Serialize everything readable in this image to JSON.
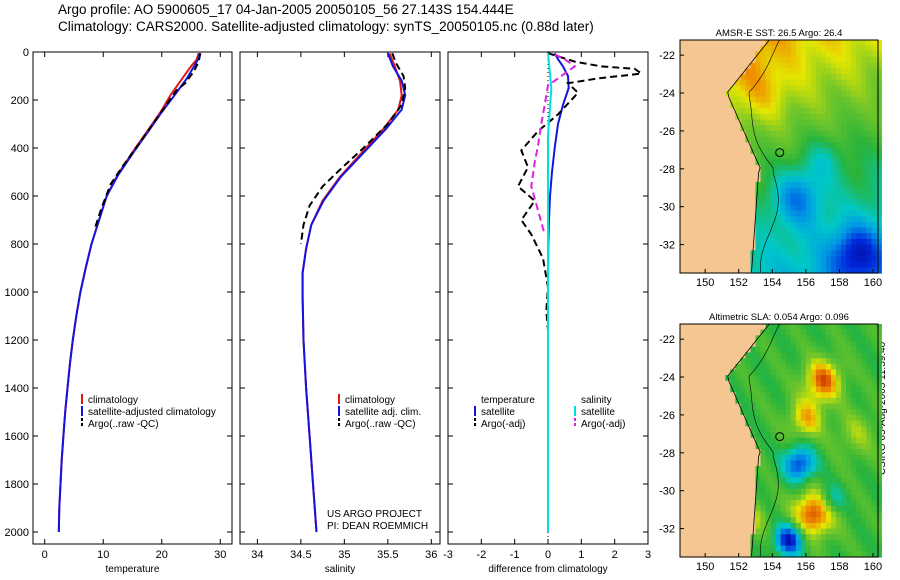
{
  "header": {
    "title_line1": "Argo profile: AO 5900605_17 04-Jan-2005 20050105_56 27.143S 154.444E",
    "title_line2": "Climatology: CARS2000. Satellite-adjusted climatology: synTS_20050105.nc (0.88d later)"
  },
  "side_label": "CSIRO 05-Aug-2005 11:59:40",
  "colors": {
    "climatology": "#e01818",
    "satellite": "#1414e0",
    "argo": "#000000",
    "cyan": "#00e0e0",
    "magenta": "#e020e0",
    "land": "#f5c592"
  },
  "chart_data": [
    {
      "type": "line",
      "title": "",
      "xlabel": "temperature",
      "ylabel": "",
      "xlim": [
        -2,
        32
      ],
      "ylim": [
        2050,
        0
      ],
      "xticks": [
        0,
        10,
        20,
        30
      ],
      "yticks": [
        0,
        200,
        400,
        600,
        800,
        1000,
        1200,
        1400,
        1600,
        1800,
        2000
      ],
      "series": [
        {
          "name": "climatology",
          "style": "solid",
          "color": "#e01818",
          "points": [
            [
              26.3,
              5
            ],
            [
              26.0,
              30
            ],
            [
              25.0,
              60
            ],
            [
              23.5,
              110
            ],
            [
              21.5,
              180
            ],
            [
              19.8,
              250
            ],
            [
              17.8,
              320
            ],
            [
              15.2,
              410
            ],
            [
              12.5,
              510
            ],
            [
              10.6,
              600
            ],
            [
              9.3,
              700
            ],
            [
              8.0,
              800
            ],
            [
              7.0,
              900
            ],
            [
              6.1,
              1000
            ],
            [
              5.4,
              1100
            ],
            [
              4.8,
              1200
            ],
            [
              4.3,
              1300
            ],
            [
              3.9,
              1400
            ],
            [
              3.5,
              1500
            ],
            [
              3.2,
              1600
            ],
            [
              2.9,
              1700
            ],
            [
              2.7,
              1800
            ],
            [
              2.5,
              1900
            ],
            [
              2.4,
              2000
            ]
          ]
        },
        {
          "name": "satellite-adjusted climatology",
          "style": "solid",
          "color": "#1414e0",
          "points": [
            [
              26.5,
              5
            ],
            [
              26.2,
              30
            ],
            [
              25.5,
              60
            ],
            [
              24.3,
              110
            ],
            [
              22.2,
              180
            ],
            [
              20.0,
              250
            ],
            [
              18.0,
              320
            ],
            [
              15.4,
              410
            ],
            [
              12.6,
              510
            ],
            [
              10.6,
              600
            ],
            [
              9.3,
              700
            ],
            [
              8.0,
              800
            ],
            [
              7.0,
              900
            ],
            [
              6.1,
              1000
            ],
            [
              5.4,
              1100
            ],
            [
              4.8,
              1200
            ],
            [
              4.3,
              1300
            ],
            [
              3.9,
              1400
            ],
            [
              3.5,
              1500
            ],
            [
              3.2,
              1600
            ],
            [
              2.9,
              1700
            ],
            [
              2.7,
              1800
            ],
            [
              2.5,
              1900
            ],
            [
              2.4,
              2000
            ]
          ]
        },
        {
          "name": "Argo(..raw -QC)",
          "style": "dashed",
          "color": "#000000",
          "points": [
            [
              26.6,
              5
            ],
            [
              26.3,
              40
            ],
            [
              25.5,
              80
            ],
            [
              24.0,
              130
            ],
            [
              22.5,
              160
            ],
            [
              20.5,
              230
            ],
            [
              18.5,
              300
            ],
            [
              16.2,
              380
            ],
            [
              13.5,
              470
            ],
            [
              11.3,
              550
            ],
            [
              9.7,
              650
            ],
            [
              8.5,
              740
            ]
          ]
        }
      ],
      "legend": [
        "climatology",
        "satellite-adjusted climatology",
        "Argo(..raw -QC)"
      ],
      "legend_position": "lower-right"
    },
    {
      "type": "line",
      "title": "",
      "xlabel": "salinity",
      "ylabel": "",
      "xlim": [
        33.8,
        36.1
      ],
      "ylim": [
        2050,
        0
      ],
      "xticks": [
        34,
        34.5,
        35,
        35.5,
        36
      ],
      "yticks": [
        0,
        200,
        400,
        600,
        800,
        1000,
        1200,
        1400,
        1600,
        1800,
        2000
      ],
      "series": [
        {
          "name": "climatology",
          "style": "solid",
          "color": "#e01818",
          "points": [
            [
              35.52,
              5
            ],
            [
              35.58,
              60
            ],
            [
              35.64,
              120
            ],
            [
              35.66,
              180
            ],
            [
              35.62,
              240
            ],
            [
              35.45,
              320
            ],
            [
              35.2,
              420
            ],
            [
              34.95,
              520
            ],
            [
              34.75,
              620
            ],
            [
              34.62,
              720
            ],
            [
              34.56,
              820
            ],
            [
              34.52,
              920
            ],
            [
              34.52,
              1020
            ],
            [
              34.53,
              1200
            ],
            [
              34.56,
              1400
            ],
            [
              34.6,
              1600
            ],
            [
              34.64,
              1800
            ],
            [
              34.68,
              2000
            ]
          ]
        },
        {
          "name": "satellite adj. clim.",
          "style": "solid",
          "color": "#1414e0",
          "points": [
            [
              35.5,
              5
            ],
            [
              35.56,
              60
            ],
            [
              35.66,
              120
            ],
            [
              35.7,
              180
            ],
            [
              35.66,
              240
            ],
            [
              35.48,
              320
            ],
            [
              35.22,
              420
            ],
            [
              34.96,
              520
            ],
            [
              34.76,
              620
            ],
            [
              34.62,
              720
            ],
            [
              34.56,
              820
            ],
            [
              34.52,
              920
            ],
            [
              34.52,
              1020
            ],
            [
              34.53,
              1200
            ],
            [
              34.56,
              1400
            ],
            [
              34.6,
              1600
            ],
            [
              34.64,
              1800
            ],
            [
              34.68,
              2000
            ]
          ]
        },
        {
          "name": "Argo(..raw -QC)",
          "style": "dashed",
          "color": "#000000",
          "points": [
            [
              35.55,
              5
            ],
            [
              35.6,
              50
            ],
            [
              35.68,
              100
            ],
            [
              35.7,
              150
            ],
            [
              35.66,
              220
            ],
            [
              35.5,
              300
            ],
            [
              35.22,
              400
            ],
            [
              34.98,
              480
            ],
            [
              34.75,
              560
            ],
            [
              34.6,
              640
            ],
            [
              34.53,
              720
            ],
            [
              34.5,
              800
            ]
          ]
        }
      ],
      "legend": [
        "climatology",
        "satellite adj. clim.",
        "Argo(..raw -QC)"
      ],
      "legend_position": "lower-right",
      "annotation": [
        "US ARGO PROJECT",
        "PI: DEAN ROEMMICH"
      ]
    },
    {
      "type": "line",
      "title": "",
      "xlabel": "difference from climatology",
      "ylabel": "",
      "xlim": [
        -3,
        3
      ],
      "ylim": [
        2050,
        0
      ],
      "xticks": [
        -3,
        -2,
        -1,
        0,
        1,
        2,
        3
      ],
      "yticks": [
        0,
        200,
        400,
        600,
        800,
        1000,
        1200,
        1400,
        1600,
        1800,
        2000
      ],
      "series": [
        {
          "name": "temperature satellite",
          "style": "solid",
          "color": "#1414e0",
          "points": [
            [
              0.2,
              5
            ],
            [
              0.3,
              30
            ],
            [
              0.45,
              60
            ],
            [
              0.6,
              100
            ],
            [
              0.62,
              150
            ],
            [
              0.45,
              220
            ],
            [
              0.3,
              300
            ],
            [
              0.2,
              400
            ],
            [
              0.12,
              500
            ],
            [
              0.06,
              600
            ],
            [
              0.03,
              700
            ],
            [
              0.01,
              800
            ],
            [
              0.0,
              1000
            ]
          ]
        },
        {
          "name": "temperature Argo(-adj)",
          "style": "dashed",
          "color": "#000000",
          "points": [
            [
              0.0,
              5
            ],
            [
              0.8,
              40
            ],
            [
              1.6,
              60
            ],
            [
              2.6,
              70
            ],
            [
              2.8,
              90
            ],
            [
              1.5,
              110
            ],
            [
              0.6,
              130
            ],
            [
              0.9,
              170
            ],
            [
              0.3,
              260
            ],
            [
              -0.3,
              330
            ],
            [
              -0.8,
              410
            ],
            [
              -0.6,
              480
            ],
            [
              -0.9,
              560
            ],
            [
              -0.4,
              620
            ],
            [
              -0.8,
              700
            ],
            [
              -0.5,
              760
            ],
            [
              -0.15,
              860
            ],
            [
              0.0,
              980
            ],
            [
              -0.05,
              1080
            ],
            [
              0.0,
              1160
            ]
          ]
        },
        {
          "name": "salinity satellite",
          "style": "solid",
          "color": "#00e0e0",
          "points": [
            [
              0.0,
              5
            ],
            [
              0.05,
              80
            ],
            [
              0.1,
              150
            ],
            [
              0.05,
              250
            ],
            [
              0.0,
              350
            ],
            [
              0.0,
              2000
            ]
          ]
        },
        {
          "name": "salinity Argo(-adj)",
          "style": "dashed",
          "color": "#e020e0",
          "points": [
            [
              0.2,
              10
            ],
            [
              0.5,
              30
            ],
            [
              0.8,
              60
            ],
            [
              0.4,
              100
            ],
            [
              0.0,
              140
            ],
            [
              -0.1,
              220
            ],
            [
              -0.2,
              300
            ],
            [
              -0.3,
              390
            ],
            [
              -0.4,
              460
            ],
            [
              -0.5,
              560
            ],
            [
              -0.3,
              660
            ],
            [
              -0.1,
              760
            ]
          ]
        }
      ],
      "legend_left": {
        "header": "temperature",
        "entries": [
          "satellite",
          "Argo(-adj)"
        ]
      },
      "legend_right": {
        "header": "salinity",
        "entries": [
          "satellite",
          "Argo(-adj)"
        ]
      },
      "legend_position": "lower"
    },
    {
      "type": "heatmap",
      "title": "AMSR-E SST: 26.5 Argo: 26.4",
      "xlim": [
        148.5,
        160.3
      ],
      "ylim": [
        -33.5,
        -21.2
      ],
      "xticks": [
        150,
        152,
        154,
        156,
        158,
        160
      ],
      "yticks": [
        -22,
        -24,
        -26,
        -28,
        -30,
        -32
      ],
      "marker": {
        "lon": 154.444,
        "lat": -27.143
      }
    },
    {
      "type": "heatmap",
      "title": "Altimetric SLA: 0.054 Argo: 0.096",
      "xlim": [
        148.5,
        160.3
      ],
      "ylim": [
        -33.5,
        -21.2
      ],
      "xticks": [
        150,
        152,
        154,
        156,
        158,
        160
      ],
      "yticks": [
        -22,
        -24,
        -26,
        -28,
        -30,
        -32
      ],
      "marker": {
        "lon": 154.444,
        "lat": -27.143
      }
    }
  ]
}
